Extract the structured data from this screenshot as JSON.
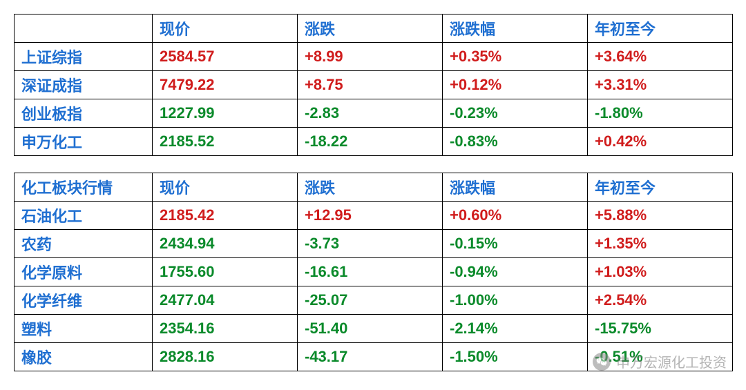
{
  "colors": {
    "header": "#1f6fd1",
    "label": "#1f6fd1",
    "up": "#d01c1c",
    "down": "#0a8a2a",
    "border": "#000000",
    "background": "#ffffff"
  },
  "typography": {
    "fontsize_pt": 16,
    "font_weight": "bold"
  },
  "table1": {
    "type": "table",
    "columns": [
      "",
      "现价",
      "涨跌",
      "涨跌幅",
      "年初至今"
    ],
    "rows": [
      {
        "label": "上证综指",
        "cells": [
          {
            "text": "2584.57",
            "dir": "up"
          },
          {
            "text": "+8.99",
            "dir": "up"
          },
          {
            "text": "+0.35%",
            "dir": "up"
          },
          {
            "text": "+3.64%",
            "dir": "up"
          }
        ]
      },
      {
        "label": "深证成指",
        "cells": [
          {
            "text": "7479.22",
            "dir": "up"
          },
          {
            "text": "+8.75",
            "dir": "up"
          },
          {
            "text": "+0.12%",
            "dir": "up"
          },
          {
            "text": "+3.31%",
            "dir": "up"
          }
        ]
      },
      {
        "label": "创业板指",
        "cells": [
          {
            "text": "1227.99",
            "dir": "dn"
          },
          {
            "text": "-2.83",
            "dir": "dn"
          },
          {
            "text": "-0.23%",
            "dir": "dn"
          },
          {
            "text": "-1.80%",
            "dir": "dn"
          }
        ]
      },
      {
        "label": "申万化工",
        "cells": [
          {
            "text": "2185.52",
            "dir": "dn"
          },
          {
            "text": "-18.22",
            "dir": "dn"
          },
          {
            "text": "-0.83%",
            "dir": "dn"
          },
          {
            "text": "+0.42%",
            "dir": "up"
          }
        ]
      }
    ]
  },
  "table2": {
    "type": "table",
    "columns": [
      "化工板块行情",
      "现价",
      "涨跌",
      "涨跌幅",
      "年初至今"
    ],
    "rows": [
      {
        "label": "石油化工",
        "cells": [
          {
            "text": "2185.42",
            "dir": "up"
          },
          {
            "text": "+12.95",
            "dir": "up"
          },
          {
            "text": "+0.60%",
            "dir": "up"
          },
          {
            "text": "+5.88%",
            "dir": "up"
          }
        ]
      },
      {
        "label": "农药",
        "cells": [
          {
            "text": "2434.94",
            "dir": "dn"
          },
          {
            "text": "-3.73",
            "dir": "dn"
          },
          {
            "text": "-0.15%",
            "dir": "dn"
          },
          {
            "text": "+1.35%",
            "dir": "up"
          }
        ]
      },
      {
        "label": "化学原料",
        "cells": [
          {
            "text": "1755.60",
            "dir": "dn"
          },
          {
            "text": "-16.61",
            "dir": "dn"
          },
          {
            "text": "-0.94%",
            "dir": "dn"
          },
          {
            "text": "+1.03%",
            "dir": "up"
          }
        ]
      },
      {
        "label": "化学纤维",
        "cells": [
          {
            "text": "2477.04",
            "dir": "dn"
          },
          {
            "text": "-25.07",
            "dir": "dn"
          },
          {
            "text": "-1.00%",
            "dir": "dn"
          },
          {
            "text": "+2.54%",
            "dir": "up"
          }
        ]
      },
      {
        "label": "塑料",
        "cells": [
          {
            "text": "2354.16",
            "dir": "dn"
          },
          {
            "text": "-51.40",
            "dir": "dn"
          },
          {
            "text": "-2.14%",
            "dir": "dn"
          },
          {
            "text": "-15.75%",
            "dir": "dn"
          }
        ]
      },
      {
        "label": "橡胶",
        "cells": [
          {
            "text": "2828.16",
            "dir": "dn"
          },
          {
            "text": "-43.17",
            "dir": "dn"
          },
          {
            "text": "-1.50%",
            "dir": "dn"
          },
          {
            "text": "-0.51%",
            "dir": "dn"
          }
        ]
      }
    ]
  },
  "watermark": {
    "text": "申万宏源化工投资"
  }
}
